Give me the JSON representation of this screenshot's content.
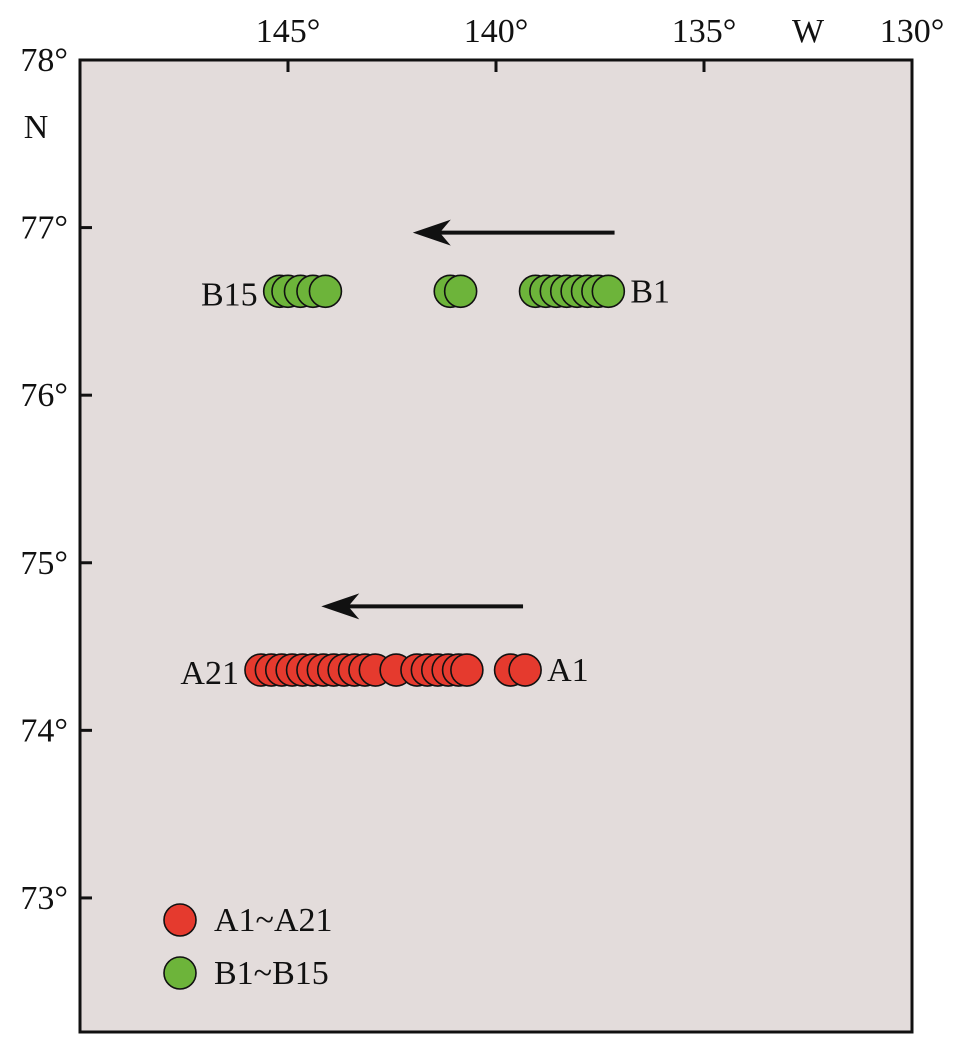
{
  "chart_data": {
    "type": "scatter",
    "title": "",
    "xlabel": "",
    "ylabel": "",
    "x_axis": {
      "range": [
        150,
        130
      ],
      "ticks": [
        {
          "value": 145,
          "label": "145°"
        },
        {
          "value": 140,
          "label": "140°"
        },
        {
          "value": 135,
          "label": "135°"
        },
        {
          "value": 130,
          "label": "130°"
        }
      ],
      "hemisphere_label": "W",
      "hemisphere_label_value": 132.5
    },
    "y_axis": {
      "range": [
        72.2,
        78
      ],
      "ticks": [
        {
          "value": 78,
          "label": "78°"
        },
        {
          "value": 77,
          "label": "77°"
        },
        {
          "value": 76,
          "label": "76°"
        },
        {
          "value": 75,
          "label": "75°"
        },
        {
          "value": 74,
          "label": "74°"
        },
        {
          "value": 73,
          "label": "73°"
        }
      ],
      "hemisphere_label": "N",
      "hemisphere_label_value": 77.6
    },
    "grid": false,
    "background_color": "#e3dcdb",
    "series": [
      {
        "name": "A1~A21",
        "color": "#e53a2e",
        "lat": 74.36,
        "lon": [
          139.3,
          139.65,
          140.7,
          140.9,
          141.15,
          141.4,
          141.65,
          141.9,
          142.4,
          142.9,
          143.15,
          143.4,
          143.65,
          143.9,
          144.15,
          144.4,
          144.65,
          144.9,
          145.15,
          145.4,
          145.65
        ],
        "start_label": "A1",
        "end_label": "A21"
      },
      {
        "name": "B1~B15",
        "color": "#6db43a",
        "lat": 76.62,
        "lon": [
          137.3,
          137.55,
          137.8,
          138.05,
          138.3,
          138.55,
          138.8,
          139.05,
          140.85,
          141.1,
          144.1,
          144.4,
          144.7,
          145.0,
          145.2
        ],
        "start_label": "B1",
        "end_label": "B15"
      }
    ],
    "arrows": [
      {
        "from": [
          137.15,
          76.97
        ],
        "to": [
          142.0,
          76.97
        ]
      },
      {
        "from": [
          139.35,
          74.74
        ],
        "to": [
          144.2,
          74.74
        ]
      }
    ],
    "legend": {
      "placement": "bottom-left",
      "entries": [
        "A1~A21",
        "B1~B15"
      ]
    }
  }
}
